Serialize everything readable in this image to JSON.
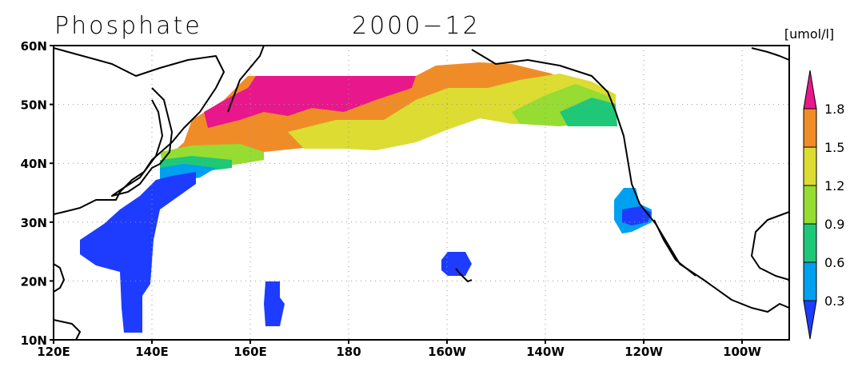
{
  "title": "Phosphate",
  "period": "2000−12",
  "units": "[umol/l]",
  "map": {
    "lat_labels": [
      "60N",
      "50N",
      "40N",
      "30N",
      "20N",
      "10N"
    ],
    "lon_labels": [
      "120E",
      "140E",
      "160E",
      "180",
      "160W",
      "140W",
      "120W",
      "100W"
    ]
  },
  "colorbar": {
    "labels": [
      "1.8",
      "1.5",
      "1.2",
      "0.9",
      "0.6",
      "0.3"
    ],
    "colors": [
      "#e8178c",
      "#f08c28",
      "#dcdc32",
      "#96dc32",
      "#1ec878",
      "#00a0f0",
      "#1e3cff"
    ]
  }
}
